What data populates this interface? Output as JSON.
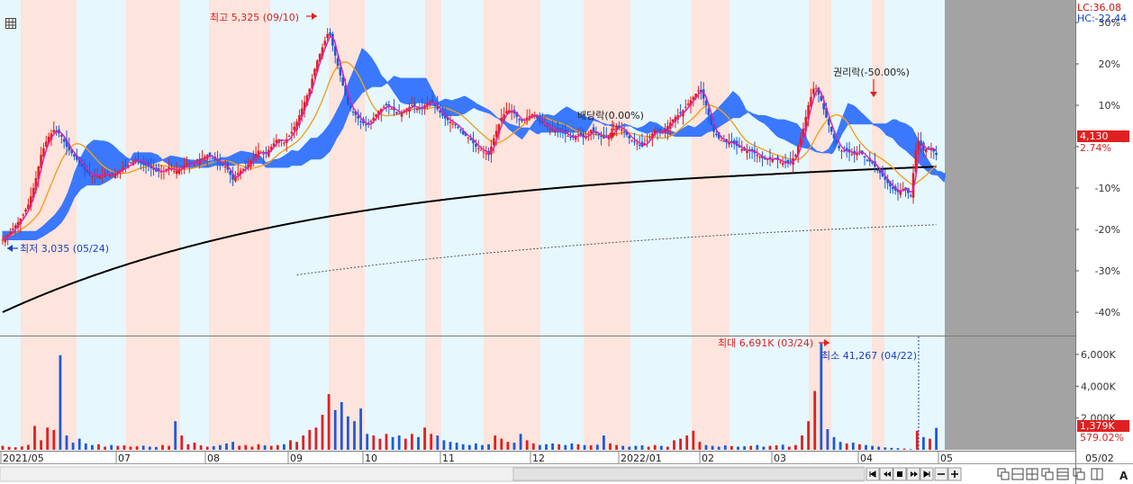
{
  "header": {
    "lc_label": "LC:36.08",
    "hc_label": "HC:-22.44",
    "lc_color": "#d01010",
    "hc_color": "#1040c0"
  },
  "toolbar": {
    "menu_icon": "grid-icon"
  },
  "chart_data": {
    "type": "candlestick",
    "title": "",
    "price_axis": {
      "unit": "%",
      "ticks": [
        30,
        20,
        10,
        0,
        -10,
        -20,
        -30,
        -40
      ],
      "tick_labels": [
        "30%",
        "20%",
        "10%",
        "",
        "-10%",
        "-20%",
        "-30%",
        "-40%"
      ],
      "ylim": [
        -43,
        33
      ]
    },
    "volume_axis": {
      "ticks": [
        2000,
        4000,
        6000
      ],
      "tick_labels": [
        "2,000K",
        "4,000K",
        "6,000K"
      ],
      "ylim": [
        0,
        6900
      ]
    },
    "x_axis": {
      "labels": [
        "2021/05",
        "07",
        "08",
        "09",
        "10",
        "11",
        "12",
        "2022/01",
        "02",
        "03",
        "04",
        "05",
        "05/02"
      ]
    },
    "annotations": {
      "high": "최고 5,325 (09/10)",
      "low": "최저 3,035 (05/24)",
      "dividend": "배당락(0.00%)",
      "rights": "권리락(-50.00%)",
      "max_volume": "최대 6,691K (03/24)",
      "min_volume": "최소 41,267 (04/22)"
    },
    "current": {
      "price": "4,130",
      "change": "2.74%",
      "price_color": "#e02020",
      "volume": "1,379K",
      "volume_ratio": "579.02%",
      "volume_color": "#e02020"
    },
    "series": [
      {
        "name": "",
        "role": "price",
        "up_color": "#e02020",
        "down_color": "#1f5ad6",
        "points": [
          [
            0,
            -22.5
          ],
          [
            5,
            -21
          ],
          [
            10,
            -19
          ],
          [
            15,
            -17
          ],
          [
            20,
            -14
          ],
          [
            25,
            -9
          ],
          [
            30,
            -2
          ],
          [
            35,
            2
          ],
          [
            40,
            4
          ],
          [
            45,
            3
          ],
          [
            50,
            0
          ],
          [
            55,
            -2
          ],
          [
            60,
            -4
          ],
          [
            65,
            -6
          ],
          [
            70,
            -7
          ],
          [
            75,
            -7
          ],
          [
            80,
            -6.5
          ],
          [
            85,
            -7
          ],
          [
            90,
            -6
          ],
          [
            95,
            -5
          ],
          [
            100,
            -4
          ],
          [
            105,
            -3
          ],
          [
            110,
            -4
          ],
          [
            115,
            -5
          ],
          [
            120,
            -6
          ],
          [
            125,
            -6
          ],
          [
            130,
            -5
          ],
          [
            135,
            -6
          ],
          [
            140,
            -5
          ],
          [
            145,
            -4
          ],
          [
            150,
            -4
          ],
          [
            155,
            -3
          ],
          [
            160,
            -2
          ],
          [
            165,
            -3
          ],
          [
            170,
            -4
          ],
          [
            175,
            -5
          ],
          [
            180,
            -8
          ],
          [
            185,
            -6
          ],
          [
            190,
            -5
          ],
          [
            195,
            -3
          ],
          [
            200,
            -1
          ],
          [
            205,
            -2
          ],
          [
            210,
            0
          ],
          [
            215,
            2
          ],
          [
            220,
            1
          ],
          [
            225,
            3
          ],
          [
            230,
            6
          ],
          [
            235,
            10
          ],
          [
            240,
            14
          ],
          [
            245,
            20
          ],
          [
            250,
            24
          ],
          [
            255,
            28
          ],
          [
            260,
            22
          ],
          [
            265,
            16
          ],
          [
            270,
            10
          ],
          [
            275,
            8
          ],
          [
            280,
            6
          ],
          [
            285,
            5
          ],
          [
            290,
            7
          ],
          [
            295,
            9
          ],
          [
            300,
            10
          ],
          [
            305,
            9
          ],
          [
            310,
            8
          ],
          [
            315,
            9
          ],
          [
            320,
            10
          ],
          [
            325,
            9
          ],
          [
            330,
            10
          ],
          [
            335,
            11
          ],
          [
            340,
            9
          ],
          [
            345,
            7
          ],
          [
            350,
            6
          ],
          [
            355,
            5
          ],
          [
            360,
            3
          ],
          [
            365,
            2
          ],
          [
            370,
            0
          ],
          [
            375,
            -1
          ],
          [
            380,
            -2
          ],
          [
            385,
            3
          ],
          [
            390,
            7
          ],
          [
            395,
            9
          ],
          [
            400,
            8
          ],
          [
            405,
            6
          ],
          [
            410,
            7
          ],
          [
            415,
            8
          ],
          [
            420,
            6
          ],
          [
            425,
            5
          ],
          [
            430,
            4
          ],
          [
            435,
            4
          ],
          [
            440,
            3
          ],
          [
            445,
            2
          ],
          [
            450,
            3
          ],
          [
            455,
            2
          ],
          [
            460,
            4
          ],
          [
            465,
            3
          ],
          [
            470,
            2
          ],
          [
            475,
            3
          ],
          [
            480,
            5
          ],
          [
            485,
            4
          ],
          [
            490,
            2
          ],
          [
            495,
            1
          ],
          [
            500,
            0
          ],
          [
            505,
            2
          ],
          [
            510,
            4
          ],
          [
            515,
            3
          ],
          [
            520,
            5
          ],
          [
            525,
            7
          ],
          [
            530,
            8
          ],
          [
            535,
            10
          ],
          [
            540,
            12
          ],
          [
            545,
            14
          ],
          [
            550,
            10
          ],
          [
            555,
            4
          ],
          [
            560,
            2
          ],
          [
            565,
            1
          ],
          [
            570,
            1
          ],
          [
            575,
            0
          ],
          [
            580,
            -1
          ],
          [
            585,
            -1
          ],
          [
            590,
            -2
          ],
          [
            595,
            -3
          ],
          [
            600,
            -3
          ],
          [
            605,
            -3
          ],
          [
            610,
            -4
          ],
          [
            615,
            -4
          ],
          [
            620,
            -2
          ],
          [
            625,
            3
          ],
          [
            630,
            10
          ],
          [
            635,
            15
          ],
          [
            640,
            11
          ],
          [
            645,
            6
          ],
          [
            650,
            2
          ],
          [
            655,
            -1
          ],
          [
            660,
            -1
          ],
          [
            665,
            -2
          ],
          [
            670,
            -1
          ],
          [
            675,
            -3
          ],
          [
            680,
            -4
          ],
          [
            685,
            -6
          ],
          [
            690,
            -8
          ],
          [
            695,
            -10
          ],
          [
            700,
            -11
          ],
          [
            705,
            -10
          ],
          [
            710,
            -12
          ],
          [
            715,
            2
          ],
          [
            720,
            -1
          ],
          [
            725,
            0
          ],
          [
            730,
            -2
          ]
        ]
      },
      {
        "name": "",
        "role": "ma-fast",
        "color": "#e020b0"
      },
      {
        "name": "",
        "role": "ma-mid",
        "color": "#f0a020"
      },
      {
        "name": "",
        "role": "ma-slow",
        "color": "#000000"
      },
      {
        "name": "",
        "role": "ma-long",
        "color": "#555555"
      },
      {
        "name": "",
        "role": "cloud",
        "color": "#3a78ff"
      },
      {
        "name": "",
        "role": "volume",
        "up_color": "#e02020",
        "down_color": "#1f5ad6",
        "bars": [
          [
            0,
            250
          ],
          [
            5,
            190
          ],
          [
            10,
            160
          ],
          [
            15,
            210
          ],
          [
            20,
            310
          ],
          [
            25,
            1500
          ],
          [
            30,
            600
          ],
          [
            35,
            1400
          ],
          [
            40,
            1250
          ],
          [
            45,
            5950
          ],
          [
            50,
            900
          ],
          [
            55,
            450
          ],
          [
            60,
            700
          ],
          [
            65,
            400
          ],
          [
            70,
            300
          ],
          [
            75,
            350
          ],
          [
            80,
            200
          ],
          [
            85,
            300
          ],
          [
            90,
            250
          ],
          [
            95,
            280
          ],
          [
            100,
            200
          ],
          [
            105,
            220
          ],
          [
            110,
            260
          ],
          [
            115,
            200
          ],
          [
            120,
            180
          ],
          [
            125,
            300
          ],
          [
            130,
            250
          ],
          [
            135,
            1800
          ],
          [
            140,
            900
          ],
          [
            145,
            350
          ],
          [
            150,
            450
          ],
          [
            155,
            280
          ],
          [
            160,
            200
          ],
          [
            165,
            230
          ],
          [
            170,
            300
          ],
          [
            175,
            400
          ],
          [
            180,
            500
          ],
          [
            185,
            250
          ],
          [
            190,
            300
          ],
          [
            195,
            200
          ],
          [
            200,
            350
          ],
          [
            205,
            280
          ],
          [
            210,
            250
          ],
          [
            215,
            300
          ],
          [
            220,
            350
          ],
          [
            225,
            600
          ],
          [
            230,
            500
          ],
          [
            235,
            900
          ],
          [
            240,
            1250
          ],
          [
            245,
            1400
          ],
          [
            250,
            2200
          ],
          [
            255,
            3500
          ],
          [
            260,
            2500
          ],
          [
            265,
            3000
          ],
          [
            270,
            2100
          ],
          [
            275,
            1800
          ],
          [
            280,
            2600
          ],
          [
            285,
            1000
          ],
          [
            290,
            900
          ],
          [
            295,
            700
          ],
          [
            300,
            1000
          ],
          [
            305,
            800
          ],
          [
            310,
            900
          ],
          [
            315,
            700
          ],
          [
            320,
            1000
          ],
          [
            325,
            800
          ],
          [
            330,
            1400
          ],
          [
            335,
            1000
          ],
          [
            340,
            900
          ],
          [
            345,
            600
          ],
          [
            350,
            500
          ],
          [
            355,
            450
          ],
          [
            360,
            350
          ],
          [
            365,
            300
          ],
          [
            370,
            400
          ],
          [
            375,
            300
          ],
          [
            380,
            350
          ],
          [
            385,
            900
          ],
          [
            390,
            700
          ],
          [
            395,
            500
          ],
          [
            400,
            450
          ],
          [
            405,
            1000
          ],
          [
            410,
            600
          ],
          [
            415,
            400
          ],
          [
            420,
            300
          ],
          [
            425,
            350
          ],
          [
            430,
            400
          ],
          [
            435,
            350
          ],
          [
            440,
            300
          ],
          [
            445,
            400
          ],
          [
            450,
            350
          ],
          [
            455,
            300
          ],
          [
            460,
            280
          ],
          [
            465,
            320
          ],
          [
            470,
            900
          ],
          [
            475,
            400
          ],
          [
            480,
            300
          ],
          [
            485,
            250
          ],
          [
            490,
            200
          ],
          [
            495,
            250
          ],
          [
            500,
            280
          ],
          [
            505,
            200
          ],
          [
            510,
            300
          ],
          [
            515,
            250
          ],
          [
            520,
            200
          ],
          [
            525,
            600
          ],
          [
            530,
            700
          ],
          [
            535,
            900
          ],
          [
            540,
            1200
          ],
          [
            545,
            500
          ],
          [
            550,
            300
          ],
          [
            555,
            250
          ],
          [
            560,
            200
          ],
          [
            565,
            280
          ],
          [
            570,
            240
          ],
          [
            575,
            200
          ],
          [
            580,
            220
          ],
          [
            585,
            250
          ],
          [
            590,
            300
          ],
          [
            595,
            200
          ],
          [
            600,
            250
          ],
          [
            605,
            280
          ],
          [
            610,
            320
          ],
          [
            615,
            200
          ],
          [
            620,
            300
          ],
          [
            625,
            900
          ],
          [
            630,
            1800
          ],
          [
            635,
            3700
          ],
          [
            640,
            6691
          ],
          [
            645,
            1300
          ],
          [
            650,
            800
          ],
          [
            655,
            500
          ],
          [
            660,
            400
          ],
          [
            665,
            450
          ],
          [
            670,
            350
          ],
          [
            675,
            300
          ],
          [
            680,
            250
          ],
          [
            685,
            200
          ],
          [
            690,
            150
          ],
          [
            695,
            120
          ],
          [
            700,
            100
          ],
          [
            705,
            80
          ],
          [
            710,
            41
          ],
          [
            715,
            1200
          ],
          [
            720,
            800
          ],
          [
            725,
            700
          ],
          [
            730,
            1379
          ]
        ]
      }
    ]
  }
}
